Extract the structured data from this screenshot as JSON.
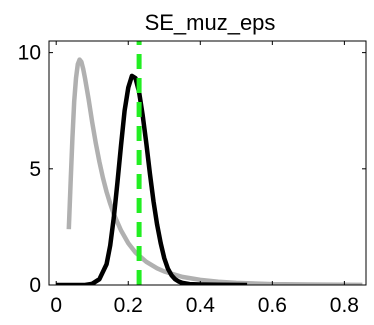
{
  "chart_data": {
    "type": "line",
    "title": "SE_muz_eps",
    "xlabel": "",
    "ylabel": "",
    "xlim": [
      -0.02,
      0.86
    ],
    "ylim": [
      0,
      10.5
    ],
    "xticks": [
      0,
      0.2,
      0.4,
      0.6,
      0.8
    ],
    "xtick_labels": [
      "0",
      "0.2",
      "0.4",
      "0.6",
      "0.8"
    ],
    "yticks": [
      0,
      5,
      10
    ],
    "ytick_labels": [
      "0",
      "5",
      "10"
    ],
    "grid": false,
    "legend": "none",
    "series": [
      {
        "role": "prior",
        "color": "#b0b0b0",
        "style": "solid",
        "x": [
          0.035,
          0.04,
          0.045,
          0.05,
          0.055,
          0.06,
          0.065,
          0.07,
          0.075,
          0.08,
          0.09,
          0.1,
          0.11,
          0.12,
          0.13,
          0.14,
          0.15,
          0.16,
          0.18,
          0.2,
          0.22,
          0.25,
          0.28,
          0.3,
          0.35,
          0.4,
          0.45,
          0.5,
          0.6,
          0.7,
          0.8,
          0.85
        ],
        "y": [
          2.4,
          4.4,
          6.3,
          7.9,
          8.9,
          9.5,
          9.7,
          9.6,
          9.3,
          8.9,
          8.0,
          7.0,
          6.1,
          5.3,
          4.6,
          4.0,
          3.5,
          3.05,
          2.35,
          1.8,
          1.4,
          1.0,
          0.72,
          0.58,
          0.35,
          0.22,
          0.14,
          0.09,
          0.04,
          0.02,
          0.01,
          0.005
        ]
      },
      {
        "role": "posterior",
        "color": "#000000",
        "style": "solid",
        "x": [
          0.0,
          0.08,
          0.1,
          0.12,
          0.14,
          0.15,
          0.16,
          0.17,
          0.18,
          0.19,
          0.2,
          0.21,
          0.22,
          0.23,
          0.24,
          0.25,
          0.26,
          0.27,
          0.28,
          0.29,
          0.3,
          0.31,
          0.32,
          0.33,
          0.34,
          0.35,
          0.37,
          0.4,
          0.45,
          0.53
        ],
        "y": [
          0.0,
          0.0,
          0.05,
          0.25,
          0.9,
          1.7,
          2.9,
          4.4,
          6.0,
          7.5,
          8.5,
          9.0,
          8.9,
          8.3,
          7.3,
          6.1,
          4.8,
          3.6,
          2.6,
          1.8,
          1.15,
          0.7,
          0.42,
          0.25,
          0.15,
          0.09,
          0.04,
          0.02,
          0.01,
          0.0
        ]
      },
      {
        "role": "mode",
        "color": "#22ee22",
        "style": "dashed",
        "x": [
          0.23,
          0.23
        ],
        "y": [
          0,
          10.5
        ]
      }
    ]
  }
}
